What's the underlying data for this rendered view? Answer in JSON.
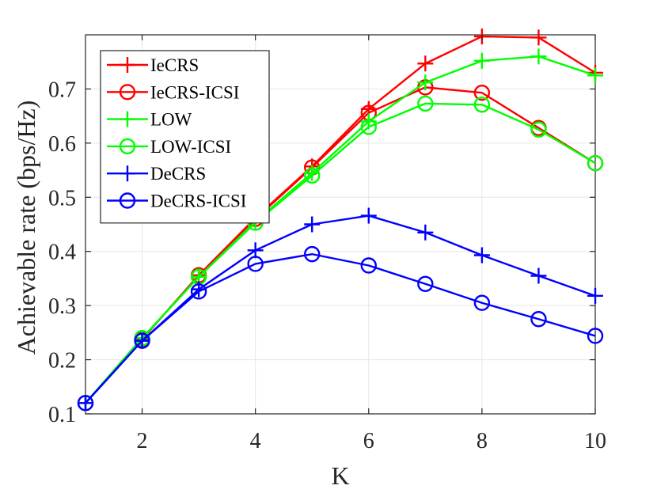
{
  "chart_data": {
    "type": "line",
    "xlabel": "K",
    "ylabel": "Achievable rate (bps/Hz)",
    "xlim": [
      1,
      10
    ],
    "ylim": [
      0.1,
      0.8
    ],
    "xticks": [
      2,
      4,
      6,
      8,
      10
    ],
    "yticks": [
      0.1,
      0.2,
      0.3,
      0.4,
      0.5,
      0.6,
      0.7
    ],
    "ytick_labels": [
      "0.1",
      "0.2",
      "0.3",
      "0.4",
      "0.5",
      "0.6",
      "0.7"
    ],
    "grid": true,
    "legend_position": "top-left",
    "x": [
      1,
      2,
      3,
      4,
      5,
      6,
      7,
      8,
      9,
      10
    ],
    "series": [
      {
        "name": "IeCRS",
        "color": "#ff0000",
        "marker": "plus",
        "values": [
          0.12,
          0.238,
          0.356,
          0.462,
          0.557,
          0.663,
          0.747,
          0.797,
          0.795,
          0.73
        ]
      },
      {
        "name": "IeCRS-ICSI",
        "color": "#ff0000",
        "marker": "circle",
        "values": [
          0.12,
          0.238,
          0.356,
          0.46,
          0.555,
          0.656,
          0.703,
          0.693,
          0.628,
          0.563
        ]
      },
      {
        "name": "LOW",
        "color": "#00ff00",
        "marker": "plus",
        "values": [
          0.12,
          0.24,
          0.353,
          0.455,
          0.545,
          0.64,
          0.712,
          0.752,
          0.76,
          0.725
        ]
      },
      {
        "name": "LOW-ICSI",
        "color": "#00ff00",
        "marker": "circle",
        "values": [
          0.12,
          0.24,
          0.353,
          0.453,
          0.54,
          0.63,
          0.673,
          0.671,
          0.625,
          0.563
        ]
      },
      {
        "name": "DeCRS",
        "color": "#0000ff",
        "marker": "plus",
        "values": [
          0.12,
          0.235,
          0.33,
          0.402,
          0.45,
          0.466,
          0.435,
          0.393,
          0.355,
          0.318
        ]
      },
      {
        "name": "DeCRS-ICSI",
        "color": "#0000ff",
        "marker": "circle",
        "values": [
          0.12,
          0.235,
          0.326,
          0.377,
          0.395,
          0.374,
          0.34,
          0.305,
          0.275,
          0.244
        ]
      }
    ]
  }
}
